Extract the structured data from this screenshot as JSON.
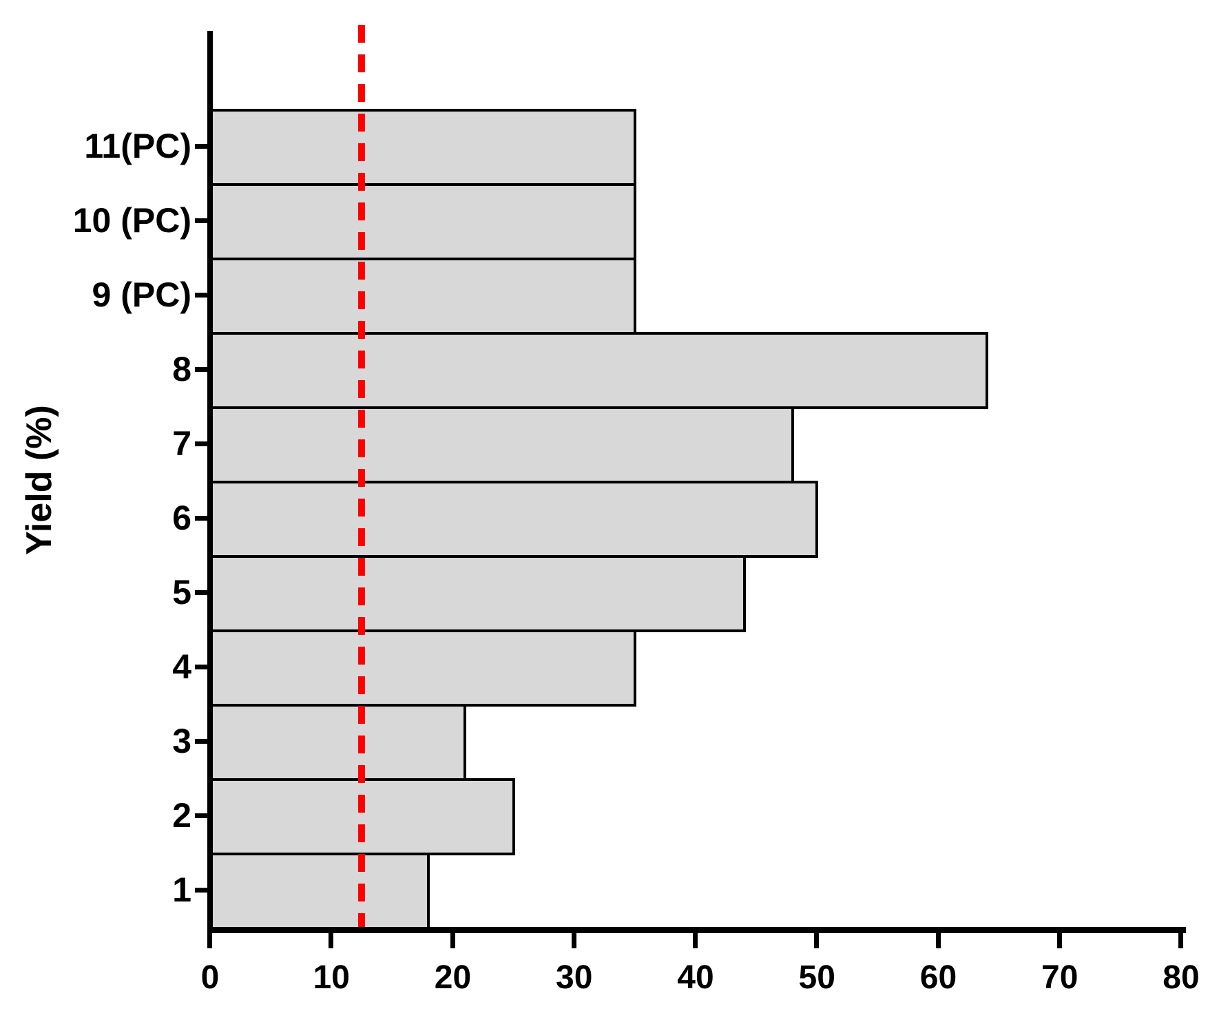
{
  "figure": {
    "background": "#ffffff",
    "text_color": "#000000"
  },
  "chart_data": {
    "type": "bar",
    "orientation": "horizontal",
    "title": "",
    "axis_title": "Yield (%)",
    "category_order": "top-to-bottom",
    "categories": [
      "11(PC)",
      "10 (PC)",
      "9 (PC)",
      "8",
      "7",
      "6",
      "5",
      "4",
      "3",
      "2",
      "1"
    ],
    "values": [
      35,
      35,
      35,
      64,
      48,
      50,
      44,
      35,
      21,
      25,
      18
    ],
    "xlim": [
      0,
      80
    ],
    "x_ticks": [
      0,
      10,
      20,
      30,
      40,
      50,
      60,
      70,
      80
    ],
    "grid": false,
    "legend": false,
    "bar_fill": "#d8d8d8",
    "bar_border": "#000000",
    "reference_line": {
      "value": 12.5,
      "color": "#ff0000",
      "style": "dashed",
      "orientation": "vertical"
    }
  }
}
